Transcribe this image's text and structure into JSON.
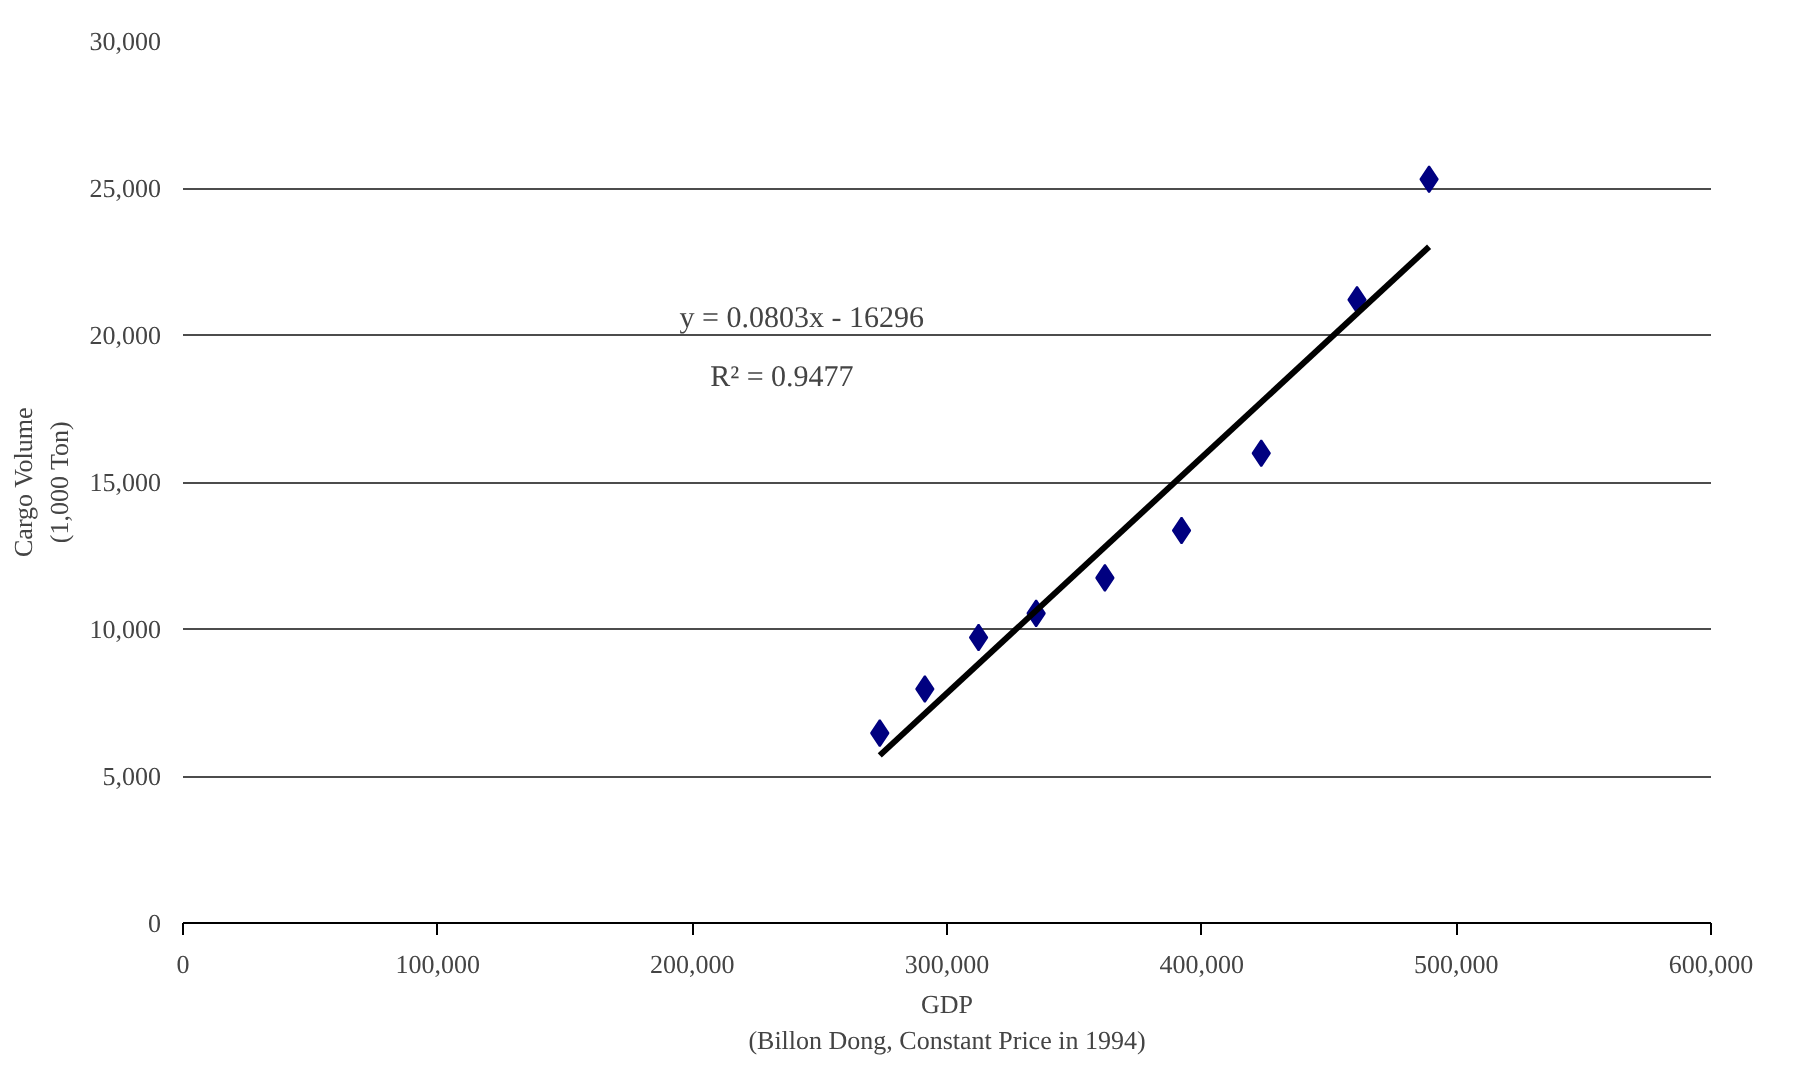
{
  "chart_data": {
    "type": "scatter",
    "xlabel": "GDP\n(Billon Dong, Constant Price in 1994)",
    "ylabel": "Cargo Volume\n(1,000 Ton)",
    "xlim": [
      0,
      600000
    ],
    "ylim": [
      0,
      30000
    ],
    "xticks": [
      {
        "value": 0,
        "label": "0"
      },
      {
        "value": 100000,
        "label": "100,000"
      },
      {
        "value": 200000,
        "label": "200,000"
      },
      {
        "value": 300000,
        "label": "300,000"
      },
      {
        "value": 400000,
        "label": "400,000"
      },
      {
        "value": 500000,
        "label": "500,000"
      },
      {
        "value": 600000,
        "label": "600,000"
      }
    ],
    "yticks": [
      0,
      {
        "value": 5000,
        "label": "5,000"
      },
      {
        "value": 10000,
        "label": "10,000"
      },
      {
        "value": 15000,
        "label": "15,000"
      },
      {
        "value": 20000,
        "label": "20,000"
      },
      {
        "value": 25000,
        "label": "25,000"
      },
      {
        "value": 30000,
        "label": "30,000"
      }
    ],
    "grid": "y",
    "series": [
      {
        "color": "#000080",
        "marker": "diamond",
        "x": [
          273600,
          291300,
          312400,
          335000,
          362000,
          392100,
          423400,
          461000,
          489300
        ],
        "values": [
          6460,
          7960,
          9710,
          10530,
          11740,
          13350,
          15980,
          21200,
          25300
        ]
      },
      {
        "type": "line",
        "marker": "none",
        "color": "#000000",
        "x": [
          273600,
          489300
        ],
        "values": [
          5700,
          23000
        ]
      }
    ],
    "annotations": [
      "y = 0.0803x - 16296",
      "R² = 0.9477"
    ]
  }
}
